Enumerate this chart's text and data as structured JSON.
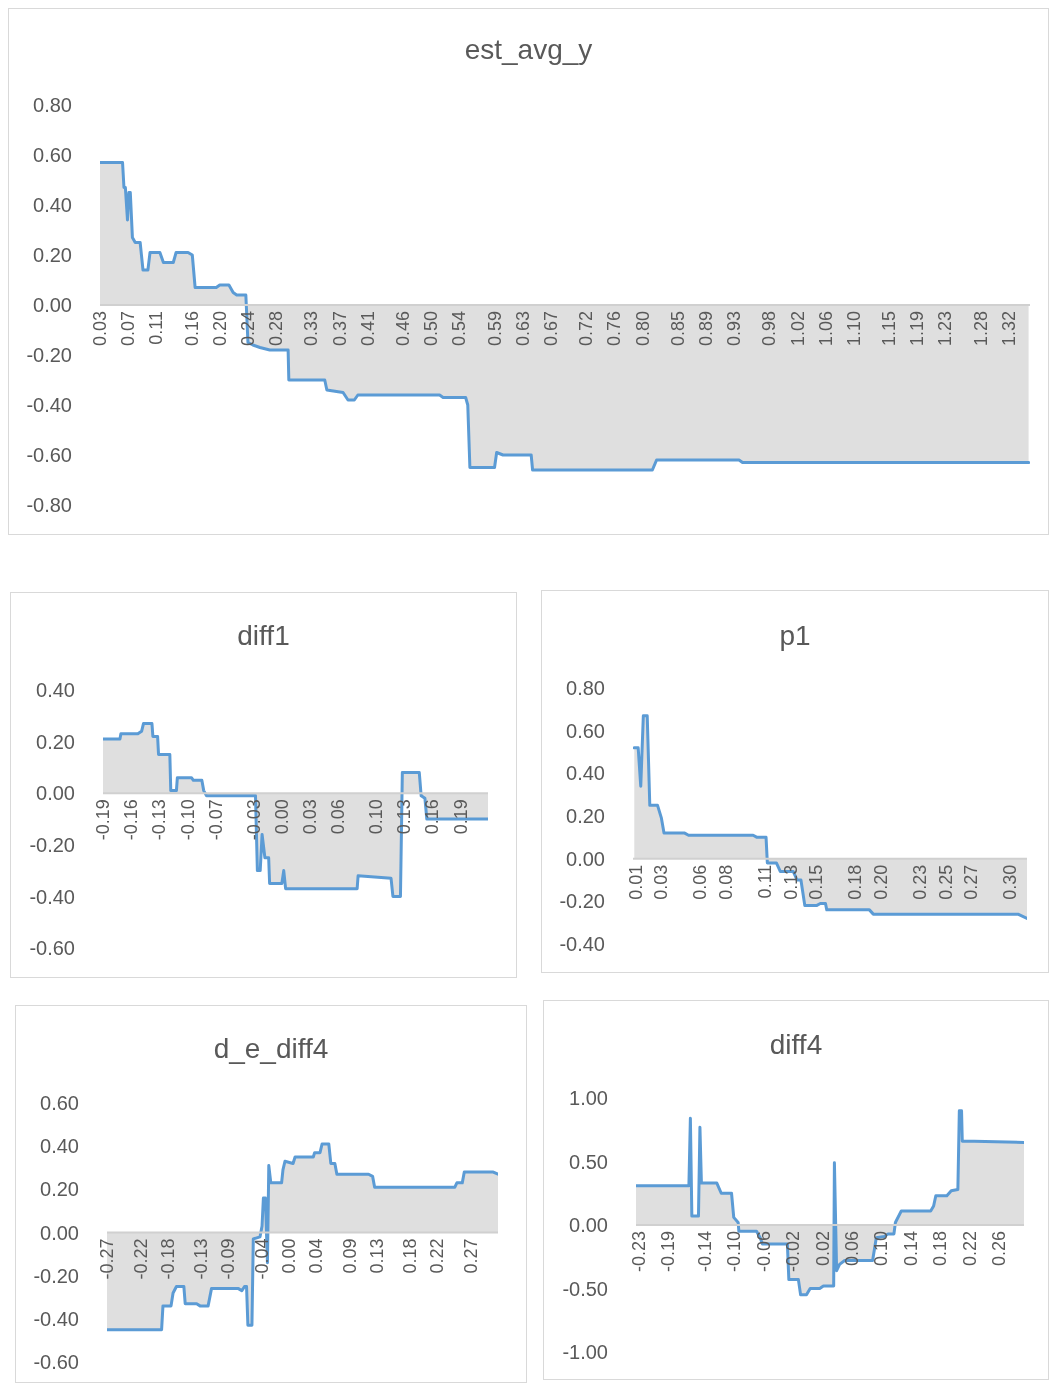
{
  "chart_data": [
    {
      "type": "area",
      "title": "est_avg_y",
      "color": "#5b9bd5",
      "xlim": [
        0.03,
        1.35
      ],
      "ylim": [
        -0.8,
        0.8
      ],
      "yticks": [
        {
          "value": -0.8,
          "label": "-0.80"
        },
        {
          "value": -0.6,
          "label": "-0.60"
        },
        {
          "value": -0.4,
          "label": "-0.40"
        },
        {
          "value": -0.2,
          "label": "-0.20"
        },
        {
          "value": 0,
          "label": "0.00"
        },
        {
          "value": 0.2,
          "label": "0.20"
        },
        {
          "value": 0.4,
          "label": "0.40"
        },
        {
          "value": 0.6,
          "label": "0.60"
        },
        {
          "value": 0.8,
          "label": "0.80"
        }
      ],
      "xticks": [
        0.03,
        0.07,
        0.11,
        0.16,
        {
          "value": 0.2,
          "label": "0.20"
        },
        0.24,
        0.28,
        0.33,
        0.37,
        0.41,
        0.46,
        {
          "value": 0.5,
          "label": "0.50"
        },
        0.54,
        0.59,
        0.63,
        0.67,
        0.72,
        0.76,
        {
          "value": 0.8,
          "label": "0.80"
        },
        0.85,
        0.89,
        0.93,
        0.98,
        1.02,
        1.06,
        {
          "value": 1.1,
          "label": "1.10"
        },
        1.15,
        1.19,
        1.23,
        1.28,
        1.32
      ],
      "x": [
        0.03,
        0.062,
        0.064,
        0.066,
        0.069,
        0.071,
        0.073,
        0.076,
        0.08,
        0.087,
        0.091,
        0.098,
        0.101,
        0.115,
        0.12,
        0.134,
        0.138,
        0.155,
        0.161,
        0.165,
        0.195,
        0.2,
        0.213,
        0.219,
        0.224,
        0.237,
        0.24,
        0.247,
        0.257,
        0.271,
        0.297,
        0.298,
        0.349,
        0.352,
        0.375,
        0.382,
        0.391,
        0.396,
        0.512,
        0.517,
        0.549,
        0.552,
        0.555,
        0.569,
        0.59,
        0.593,
        0.602,
        0.642,
        0.644,
        0.814,
        0.82,
        0.937,
        0.942,
        1.348
      ],
      "values": [
        0.57,
        0.57,
        0.47,
        0.47,
        0.34,
        0.45,
        0.45,
        0.27,
        0.25,
        0.25,
        0.14,
        0.14,
        0.21,
        0.21,
        0.17,
        0.17,
        0.21,
        0.21,
        0.2,
        0.07,
        0.07,
        0.08,
        0.08,
        0.05,
        0.04,
        0.04,
        -0.15,
        -0.16,
        -0.17,
        -0.18,
        -0.18,
        -0.3,
        -0.3,
        -0.34,
        -0.35,
        -0.38,
        -0.38,
        -0.36,
        -0.36,
        -0.37,
        -0.37,
        -0.4,
        -0.65,
        -0.65,
        -0.65,
        -0.59,
        -0.6,
        -0.6,
        -0.66,
        -0.66,
        -0.62,
        -0.62,
        -0.63,
        -0.63
      ]
    },
    {
      "type": "area",
      "title": "diff1",
      "color": "#5b9bd5",
      "xlim": [
        -0.19,
        0.219
      ],
      "ylim": [
        -0.6,
        0.4
      ],
      "yticks": [
        {
          "value": -0.6,
          "label": "-0.60"
        },
        {
          "value": -0.4,
          "label": "-0.40"
        },
        {
          "value": -0.2,
          "label": "-0.20"
        },
        {
          "value": 0,
          "label": "0.00"
        },
        {
          "value": 0.2,
          "label": "0.20"
        },
        {
          "value": 0.4,
          "label": "0.40"
        }
      ],
      "xticks": [
        -0.19,
        -0.16,
        -0.13,
        {
          "value": -0.1,
          "label": "-0.10"
        },
        -0.07,
        -0.03,
        {
          "value": 0,
          "label": "0.00"
        },
        0.03,
        0.06,
        {
          "value": 0.1,
          "label": "0.10"
        },
        0.13,
        0.16,
        0.19
      ],
      "x": [
        -0.19,
        -0.172,
        -0.171,
        -0.153,
        -0.149,
        -0.147,
        -0.138,
        -0.137,
        -0.132,
        -0.131,
        -0.119,
        -0.118,
        -0.112,
        -0.111,
        -0.096,
        -0.094,
        -0.085,
        -0.083,
        -0.08,
        -0.039,
        -0.036,
        -0.028,
        -0.026,
        -0.023,
        -0.021,
        -0.018,
        -0.014,
        -0.013,
        0.0,
        0.002,
        0.004,
        0.071,
        0.08,
        0.081,
        0.116,
        0.118,
        0.126,
        0.128,
        0.146,
        0.148,
        0.152,
        0.154,
        0.182,
        0.219
      ],
      "values": [
        0.21,
        0.21,
        0.23,
        0.23,
        0.24,
        0.27,
        0.27,
        0.22,
        0.22,
        0.15,
        0.15,
        0.01,
        0.01,
        0.06,
        0.06,
        0.05,
        0.05,
        0.01,
        -0.01,
        -0.01,
        -0.01,
        -0.01,
        -0.3,
        -0.3,
        -0.16,
        -0.25,
        -0.25,
        -0.35,
        -0.35,
        -0.3,
        -0.37,
        -0.37,
        -0.37,
        -0.32,
        -0.33,
        -0.4,
        -0.4,
        0.08,
        0.08,
        -0.01,
        -0.02,
        -0.1,
        -0.1,
        -0.1
      ]
    },
    {
      "type": "area",
      "title": "p1",
      "color": "#5b9bd5",
      "xlim": [
        0.008,
        0.313
      ],
      "ylim": [
        -0.4,
        0.8
      ],
      "yticks": [
        {
          "value": -0.4,
          "label": "-0.40"
        },
        {
          "value": -0.2,
          "label": "-0.20"
        },
        {
          "value": 0,
          "label": "0.00"
        },
        {
          "value": 0.2,
          "label": "0.20"
        },
        {
          "value": 0.4,
          "label": "0.40"
        },
        {
          "value": 0.6,
          "label": "0.60"
        },
        {
          "value": 0.8,
          "label": "0.80"
        }
      ],
      "xticks": [
        0.01,
        0.03,
        0.06,
        0.08,
        0.11,
        0.13,
        0.15,
        0.18,
        {
          "value": 0.2,
          "label": "0.20"
        },
        0.23,
        0.25,
        0.27,
        {
          "value": 0.3,
          "label": "0.30"
        }
      ],
      "x": [
        0.009,
        0.012,
        0.014,
        0.016,
        0.019,
        0.021,
        0.027,
        0.03,
        0.032,
        0.048,
        0.051,
        0.101,
        0.104,
        0.111,
        0.112,
        0.119,
        0.122,
        0.132,
        0.135,
        0.138,
        0.141,
        0.15,
        0.153,
        0.157,
        0.158,
        0.191,
        0.194,
        0.306,
        0.313
      ],
      "values": [
        0.52,
        0.52,
        0.34,
        0.67,
        0.67,
        0.25,
        0.25,
        0.19,
        0.12,
        0.12,
        0.11,
        0.11,
        0.1,
        0.1,
        -0.02,
        -0.02,
        -0.06,
        -0.06,
        -0.1,
        -0.1,
        -0.22,
        -0.22,
        -0.21,
        -0.21,
        -0.24,
        -0.24,
        -0.26,
        -0.26,
        -0.28
      ]
    },
    {
      "type": "area",
      "title": "d_e_diff4",
      "color": "#5b9bd5",
      "xlim": [
        -0.27,
        0.31
      ],
      "ylim": [
        -0.6,
        0.6
      ],
      "yticks": [
        {
          "value": -0.6,
          "label": "-0.60"
        },
        {
          "value": -0.4,
          "label": "-0.40"
        },
        {
          "value": -0.2,
          "label": "-0.20"
        },
        {
          "value": 0,
          "label": "0.00"
        },
        {
          "value": 0.2,
          "label": "0.20"
        },
        {
          "value": 0.4,
          "label": "0.40"
        },
        {
          "value": 0.6,
          "label": "0.60"
        }
      ],
      "xticks": [
        -0.27,
        -0.22,
        -0.18,
        -0.13,
        -0.09,
        -0.04,
        {
          "value": 0,
          "label": "0.00"
        },
        0.04,
        0.09,
        0.13,
        0.18,
        0.22,
        0.27
      ],
      "x": [
        -0.27,
        -0.189,
        -0.187,
        -0.175,
        -0.172,
        -0.167,
        -0.156,
        -0.154,
        -0.137,
        -0.132,
        -0.12,
        -0.115,
        -0.075,
        -0.07,
        -0.066,
        -0.063,
        -0.061,
        -0.055,
        -0.053,
        -0.043,
        -0.04,
        -0.038,
        -0.035,
        -0.032,
        -0.03,
        -0.027,
        -0.011,
        -0.009,
        -0.006,
        0.006,
        0.009,
        0.036,
        0.038,
        0.046,
        0.049,
        0.059,
        0.062,
        0.068,
        0.071,
        0.118,
        0.124,
        0.127,
        0.246,
        0.249,
        0.257,
        0.26,
        0.303,
        0.31
      ],
      "values": [
        -0.45,
        -0.45,
        -0.34,
        -0.34,
        -0.28,
        -0.25,
        -0.25,
        -0.33,
        -0.33,
        -0.34,
        -0.34,
        -0.26,
        -0.26,
        -0.27,
        -0.25,
        -0.25,
        -0.43,
        -0.43,
        -0.03,
        -0.02,
        0.03,
        0.16,
        0.16,
        -0.14,
        0.31,
        0.23,
        0.23,
        0.29,
        0.33,
        0.32,
        0.35,
        0.35,
        0.37,
        0.37,
        0.41,
        0.41,
        0.32,
        0.32,
        0.27,
        0.27,
        0.26,
        0.21,
        0.21,
        0.23,
        0.23,
        0.28,
        0.28,
        0.27
      ]
    },
    {
      "type": "area",
      "title": "diff4",
      "color": "#5b9bd5",
      "xlim": [
        -0.234,
        0.294
      ],
      "ylim": [
        -1,
        1
      ],
      "yticks": [
        {
          "value": -1,
          "label": "-1.00"
        },
        {
          "value": -0.5,
          "label": "-0.50"
        },
        {
          "value": 0,
          "label": "0.00"
        },
        {
          "value": 0.5,
          "label": "0.50"
        },
        {
          "value": 1,
          "label": "1.00"
        }
      ],
      "xticks": [
        -0.23,
        -0.19,
        -0.14,
        {
          "value": -0.1,
          "label": "-0.10"
        },
        -0.06,
        -0.02,
        0.02,
        0.06,
        {
          "value": 0.1,
          "label": "0.10"
        },
        0.14,
        0.18,
        0.22,
        0.26
      ],
      "x": [
        -0.234,
        -0.162,
        -0.16,
        -0.158,
        -0.149,
        -0.147,
        -0.145,
        -0.124,
        -0.118,
        -0.104,
        -0.101,
        -0.095,
        -0.094,
        -0.07,
        -0.065,
        -0.062,
        -0.028,
        -0.026,
        -0.013,
        -0.01,
        -0.002,
        0.003,
        0.016,
        0.021,
        0.035,
        0.036,
        0.039,
        0.043,
        0.05,
        0.088,
        0.093,
        0.104,
        0.109,
        0.117,
        0.119,
        0.127,
        0.167,
        0.171,
        0.174,
        0.189,
        0.195,
        0.204,
        0.206,
        0.209,
        0.21,
        0.226,
        0.294
      ],
      "values": [
        0.31,
        0.31,
        0.84,
        0.07,
        0.07,
        0.77,
        0.33,
        0.33,
        0.25,
        0.25,
        0.06,
        0.02,
        -0.05,
        -0.05,
        -0.1,
        -0.15,
        -0.15,
        -0.43,
        -0.43,
        -0.55,
        -0.55,
        -0.5,
        -0.5,
        -0.48,
        -0.48,
        0.49,
        -0.36,
        -0.31,
        -0.28,
        -0.28,
        -0.1,
        -0.09,
        -0.07,
        -0.07,
        0.02,
        0.11,
        0.11,
        0.15,
        0.23,
        0.23,
        0.27,
        0.28,
        0.9,
        0.9,
        0.66,
        0.66,
        0.65
      ]
    }
  ]
}
